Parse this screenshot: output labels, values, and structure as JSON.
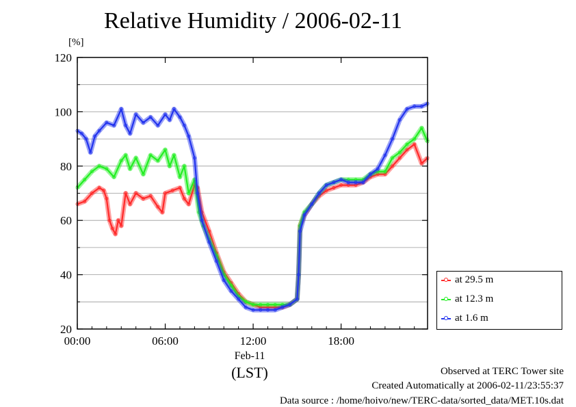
{
  "title": "Relative Humidity / 2006-02-11",
  "unit_label": "[%]",
  "x_date_label": "Feb-11",
  "x_zone_label": "(LST)",
  "footer": {
    "line1": "Observed at TERC Tower site",
    "line2": "Created Automatically at 2006-02-11/23:55:37",
    "line3": "Data source : /home/hoivo/new/TERC-data/sorted_data/MET.10s.dat"
  },
  "colors": {
    "s1": "#ff2a2a",
    "s2": "#22ee22",
    "s3": "#2233ee"
  },
  "chart_data": {
    "type": "line",
    "xlabel": "",
    "ylabel": "[%]",
    "xlim": [
      0,
      23.9
    ],
    "ylim": [
      20,
      120
    ],
    "x_tick_labels": [
      "00:00",
      "06:00",
      "12:00",
      "18:00"
    ],
    "x_tick_values": [
      0,
      6,
      12,
      18
    ],
    "y_tick_values": [
      20,
      40,
      60,
      80,
      100,
      120
    ],
    "legend_position": "bottom-right-outside",
    "grid": true,
    "series": [
      {
        "name": "at 29.5 m",
        "x": [
          0,
          0.5,
          1,
          1.5,
          1.8,
          2,
          2.2,
          2.4,
          2.6,
          2.8,
          3,
          3.3,
          3.6,
          4,
          4.5,
          5,
          5.5,
          5.8,
          6,
          6.5,
          7,
          7.3,
          7.6,
          8,
          8.2,
          8.5,
          9,
          9.5,
          10,
          10.5,
          11,
          11.5,
          12,
          12.5,
          13,
          13.5,
          14,
          14.5,
          15,
          15.1,
          15.2,
          15.5,
          16,
          16.5,
          17,
          17.5,
          18,
          18.5,
          19,
          19.5,
          20,
          20.5,
          21,
          21.5,
          22,
          22.5,
          23,
          23.5,
          23.9
        ],
        "y": [
          66,
          67,
          70,
          72,
          71,
          68,
          60,
          57,
          55,
          60,
          58,
          70,
          66,
          70,
          68,
          69,
          65,
          63,
          70,
          71,
          72,
          68,
          66,
          73,
          72,
          63,
          56,
          48,
          41,
          37,
          33,
          30,
          29,
          28,
          28,
          28,
          28,
          29,
          31,
          40,
          58,
          62,
          66,
          69,
          71,
          72,
          73,
          73,
          73,
          74,
          76,
          77,
          77,
          80,
          83,
          86,
          88,
          81,
          83
        ]
      },
      {
        "name": "at 12.3 m",
        "x": [
          0,
          0.5,
          1,
          1.5,
          2,
          2.5,
          3,
          3.3,
          3.6,
          4,
          4.5,
          5,
          5.5,
          6,
          6.3,
          6.6,
          7,
          7.3,
          7.6,
          8,
          8.3,
          8.6,
          9,
          9.5,
          10,
          10.5,
          11,
          11.5,
          12,
          12.5,
          13,
          13.5,
          14,
          14.5,
          15,
          15.1,
          15.2,
          15.5,
          16,
          16.5,
          17,
          17.5,
          18,
          18.5,
          19,
          19.5,
          20,
          20.5,
          21,
          21.5,
          22,
          22.5,
          23,
          23.5,
          23.9
        ],
        "y": [
          72,
          75,
          78,
          80,
          79,
          76,
          82,
          84,
          79,
          83,
          77,
          84,
          82,
          86,
          80,
          84,
          76,
          80,
          70,
          75,
          63,
          58,
          53,
          47,
          40,
          36,
          32,
          30,
          29,
          29,
          29,
          29,
          29,
          29,
          31,
          40,
          58,
          63,
          66,
          70,
          73,
          74,
          75,
          75,
          75,
          75,
          77,
          78,
          78,
          83,
          85,
          88,
          90,
          94,
          89
        ]
      },
      {
        "name": "at 1.6 m",
        "x": [
          0,
          0.3,
          0.6,
          0.9,
          1.2,
          1.5,
          2,
          2.5,
          3,
          3.3,
          3.6,
          4,
          4.5,
          5,
          5.5,
          6,
          6.3,
          6.6,
          7,
          7.3,
          7.6,
          8,
          8.2,
          8.5,
          9,
          9.5,
          10,
          10.5,
          11,
          11.5,
          12,
          12.5,
          13,
          13.5,
          14,
          14.5,
          15,
          15.1,
          15.2,
          15.5,
          16,
          16.5,
          17,
          17.5,
          18,
          18.5,
          19,
          19.5,
          20,
          20.5,
          21,
          21.5,
          22,
          22.5,
          23,
          23.5,
          23.9
        ],
        "y": [
          93,
          92,
          90,
          85,
          91,
          93,
          96,
          95,
          101,
          95,
          92,
          99,
          96,
          98,
          95,
          99,
          97,
          101,
          98,
          95,
          91,
          83,
          70,
          60,
          52,
          45,
          38,
          34,
          31,
          28,
          27,
          27,
          27,
          27,
          28,
          29,
          31,
          40,
          56,
          62,
          66,
          70,
          73,
          74,
          75,
          74,
          74,
          74,
          77,
          79,
          84,
          90,
          97,
          101,
          102,
          102,
          103
        ]
      }
    ]
  }
}
